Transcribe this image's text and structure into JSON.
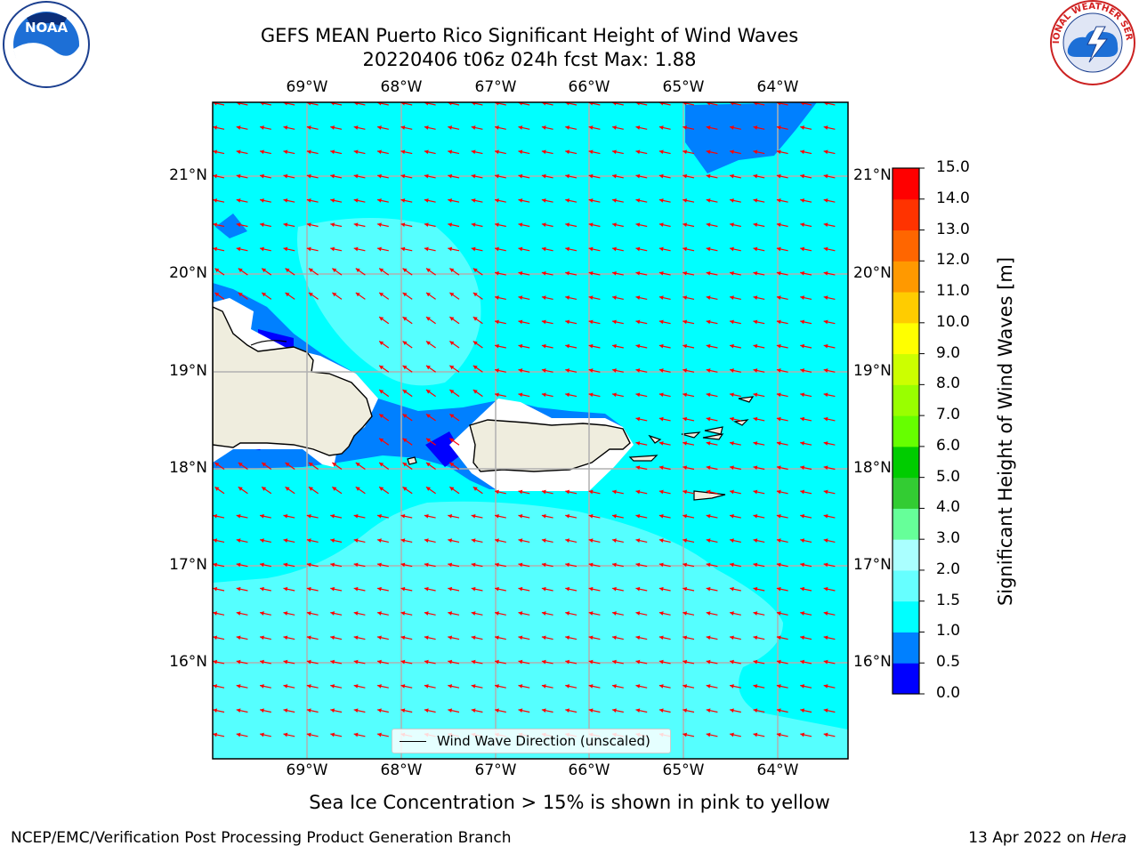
{
  "title": {
    "line1": "GEFS MEAN Puerto Rico Significant Height of Wind Waves",
    "line2": "20220406 t06z 024h fcst   Max: 1.88"
  },
  "logos": {
    "left": {
      "name": "noaa-logo",
      "text": "NOAA"
    },
    "right": {
      "name": "national-weather-service-logo",
      "text": "NATIONAL WEATHER SERVICE"
    }
  },
  "axes": {
    "lon_labels": [
      "69°W",
      "68°W",
      "67°W",
      "66°W",
      "65°W",
      "64°W"
    ],
    "lat_labels": [
      "21°N",
      "20°N",
      "19°N",
      "18°N",
      "17°N",
      "16°N"
    ]
  },
  "legend": {
    "label": "Wind Wave Direction (unscaled)"
  },
  "colorbar": {
    "title": "Significant Height of Wind Waves [m]",
    "ticks": [
      "15.0",
      "14.0",
      "13.0",
      "12.0",
      "11.0",
      "10.0",
      "9.0",
      "8.0",
      "7.0",
      "6.0",
      "5.0",
      "4.0",
      "3.0",
      "2.0",
      "1.5",
      "1.0",
      "0.5",
      "0.0"
    ],
    "colors_bottom_to_top": [
      "#0000ff",
      "#0080ff",
      "#00ffff",
      "#66ffff",
      "#aaffff",
      "#66ff99",
      "#33cc33",
      "#00cc00",
      "#66ff00",
      "#99ff00",
      "#ccff00",
      "#ffff00",
      "#ffcc00",
      "#ff9900",
      "#ff6600",
      "#ff3300",
      "#ff0000"
    ]
  },
  "colors": {
    "sea_1_15": "#00ffff",
    "sea_15_2": "#55ffff",
    "sea_05_1": "#0080ff",
    "sea_0_05": "#0000ff",
    "land": "#efedde",
    "arrow": "#ff0000"
  },
  "footer": {
    "note": "Sea Ice Concentration > 15% is shown in pink to yellow",
    "credit": "NCEP/EMC/Verification Post Processing Product Generation Branch",
    "date_prefix": "13 Apr 2022 on ",
    "date_machine": "Hera"
  }
}
